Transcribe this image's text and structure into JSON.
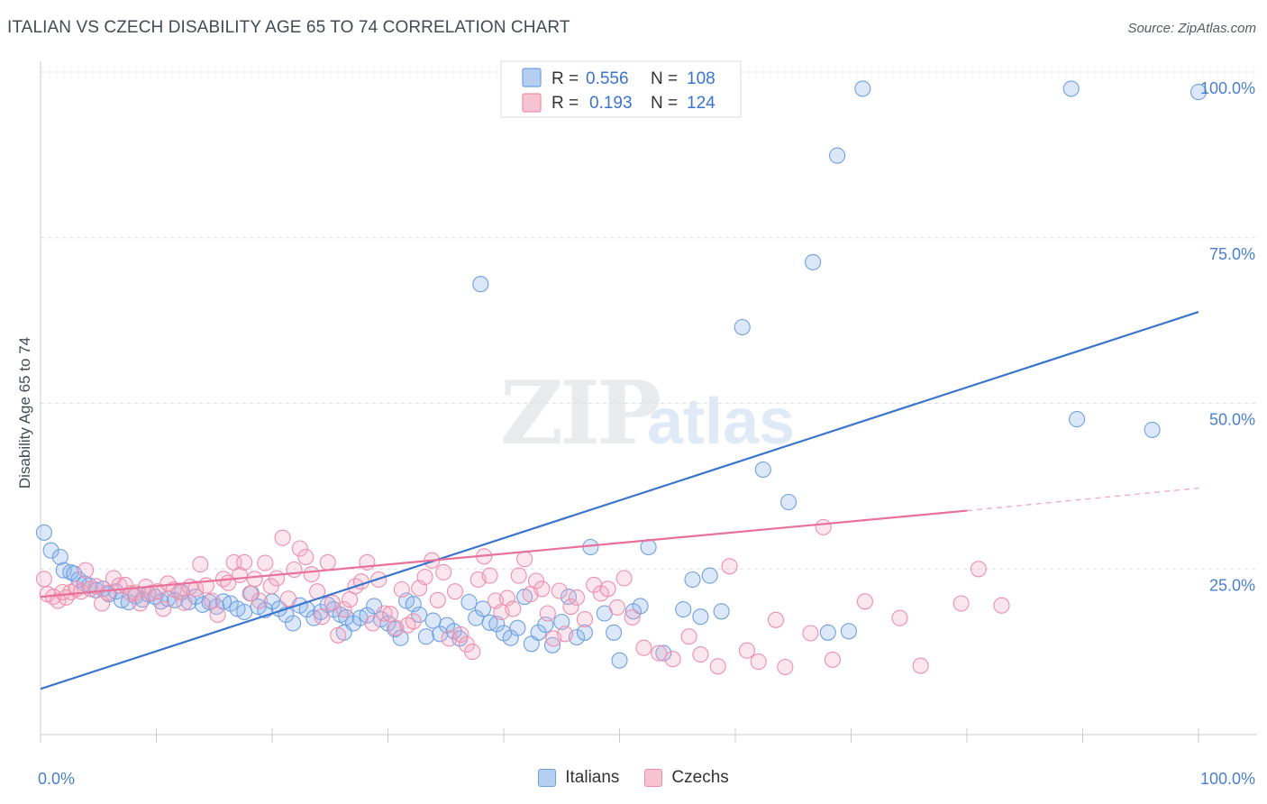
{
  "header": {
    "title": "ITALIAN VS CZECH DISABILITY AGE 65 TO 74 CORRELATION CHART",
    "source": "Source: ZipAtlas.com"
  },
  "watermark": {
    "zip": "ZIP",
    "atlas": "atlas"
  },
  "legend": {
    "r_label": "R =",
    "n_label": "N =",
    "rows": [
      {
        "r": "0.556",
        "n": "108",
        "color": "#6fa0e3"
      },
      {
        "r": "0.193",
        "n": "124",
        "color": "#ef8fad"
      }
    ]
  },
  "bottom_legend": [
    "Italians",
    "Czechs"
  ],
  "chart_data": {
    "type": "scatter",
    "title": "ITALIAN VS CZECH DISABILITY AGE 65 TO 74 CORRELATION CHART",
    "xlabel": "",
    "ylabel": "Disability Age 65 to 74",
    "xlim": [
      0,
      100
    ],
    "ylim": [
      0,
      100
    ],
    "x_tick_labels": [
      "0.0%",
      "100.0%"
    ],
    "y_tick_labels": [
      "25.0%",
      "50.0%",
      "75.0%",
      "100.0%"
    ],
    "y_ticks": [
      25,
      50,
      75,
      100
    ],
    "grid": true,
    "legend_position": "top-center",
    "series": [
      {
        "name": "Italians",
        "color": "#6fa0e3",
        "R": 0.556,
        "N": 108,
        "trend": {
          "x": [
            0,
            100
          ],
          "y": [
            6.9,
            63.8
          ],
          "dashed_from": null
        },
        "points": [
          [
            0.3,
            30.5
          ],
          [
            0.9,
            27.8
          ],
          [
            1.7,
            26.8
          ],
          [
            2.0,
            24.8
          ],
          [
            2.6,
            24.5
          ],
          [
            2.9,
            24.3
          ],
          [
            3.3,
            23.4
          ],
          [
            3.8,
            22.8
          ],
          [
            4.2,
            22.5
          ],
          [
            4.8,
            21.8
          ],
          [
            5.4,
            22.0
          ],
          [
            5.9,
            21.2
          ],
          [
            6.5,
            21.6
          ],
          [
            7.0,
            20.3
          ],
          [
            7.6,
            20.0
          ],
          [
            8.2,
            20.9
          ],
          [
            8.8,
            20.4
          ],
          [
            9.3,
            21.2
          ],
          [
            9.9,
            20.8
          ],
          [
            10.4,
            20.1
          ],
          [
            11.0,
            20.5
          ],
          [
            11.6,
            20.3
          ],
          [
            12.2,
            21.5
          ],
          [
            12.8,
            20.0
          ],
          [
            13.4,
            20.8
          ],
          [
            14.0,
            19.6
          ],
          [
            14.6,
            20.0
          ],
          [
            15.2,
            19.3
          ],
          [
            15.8,
            20.1
          ],
          [
            16.4,
            19.8
          ],
          [
            17.0,
            19.0
          ],
          [
            17.6,
            18.5
          ],
          [
            18.2,
            21.3
          ],
          [
            18.8,
            19.3
          ],
          [
            19.4,
            18.8
          ],
          [
            20.0,
            20.1
          ],
          [
            20.6,
            19.0
          ],
          [
            21.2,
            18.1
          ],
          [
            21.8,
            16.8
          ],
          [
            22.4,
            19.5
          ],
          [
            23.0,
            18.9
          ],
          [
            23.6,
            17.6
          ],
          [
            24.2,
            18.5
          ],
          [
            24.8,
            19.6
          ],
          [
            25.3,
            18.9
          ],
          [
            25.9,
            18.1
          ],
          [
            26.4,
            17.7
          ],
          [
            27.0,
            16.8
          ],
          [
            27.6,
            17.6
          ],
          [
            28.2,
            18.0
          ],
          [
            28.8,
            19.4
          ],
          [
            29.4,
            17.4
          ],
          [
            30.0,
            16.8
          ],
          [
            30.6,
            15.9
          ],
          [
            31.1,
            14.6
          ],
          [
            31.6,
            20.2
          ],
          [
            32.2,
            19.7
          ],
          [
            32.7,
            18.1
          ],
          [
            33.3,
            14.8
          ],
          [
            33.9,
            17.2
          ],
          [
            34.5,
            15.2
          ],
          [
            35.1,
            16.5
          ],
          [
            35.7,
            15.6
          ],
          [
            36.2,
            14.5
          ],
          [
            37.0,
            20.0
          ],
          [
            37.6,
            17.6
          ],
          [
            38.2,
            19.0
          ],
          [
            38.8,
            16.9
          ],
          [
            39.4,
            16.7
          ],
          [
            40.0,
            15.3
          ],
          [
            40.6,
            14.6
          ],
          [
            41.2,
            16.1
          ],
          [
            41.8,
            20.8
          ],
          [
            42.4,
            13.7
          ],
          [
            43.0,
            15.4
          ],
          [
            43.6,
            16.6
          ],
          [
            44.2,
            13.5
          ],
          [
            45.0,
            17.0
          ],
          [
            45.6,
            20.8
          ],
          [
            46.3,
            14.7
          ],
          [
            47.0,
            15.4
          ],
          [
            47.5,
            28.3
          ],
          [
            48.7,
            18.3
          ],
          [
            49.5,
            15.4
          ],
          [
            50.0,
            11.2
          ],
          [
            51.2,
            18.6
          ],
          [
            51.8,
            19.4
          ],
          [
            52.5,
            28.3
          ],
          [
            53.8,
            12.3
          ],
          [
            55.5,
            18.9
          ],
          [
            56.3,
            23.4
          ],
          [
            57.0,
            17.8
          ],
          [
            57.8,
            24.0
          ],
          [
            58.8,
            18.6
          ],
          [
            60.6,
            61.5
          ],
          [
            62.4,
            40.0
          ],
          [
            64.6,
            35.1
          ],
          [
            66.7,
            71.3
          ],
          [
            68.0,
            15.4
          ],
          [
            68.8,
            87.4
          ],
          [
            69.8,
            15.6
          ],
          [
            71.0,
            97.5
          ],
          [
            89.5,
            47.6
          ],
          [
            100,
            97.0
          ],
          [
            96.0,
            46.0
          ],
          [
            89.0,
            97.5
          ],
          [
            38.0,
            68.0
          ],
          [
            26.2,
            15.4
          ]
        ]
      },
      {
        "name": "Czechs",
        "color": "#ef8fad",
        "R": 0.193,
        "N": 124,
        "trend": {
          "x": [
            0,
            80,
            100
          ],
          "y": [
            20.8,
            33.8,
            37.2
          ],
          "dashed_from": 80
        },
        "points": [
          [
            0.3,
            23.5
          ],
          [
            0.6,
            21.2
          ],
          [
            1.1,
            20.8
          ],
          [
            1.5,
            20.2
          ],
          [
            1.9,
            21.5
          ],
          [
            2.2,
            20.7
          ],
          [
            2.6,
            21.5
          ],
          [
            3.1,
            22.0
          ],
          [
            3.5,
            21.6
          ],
          [
            3.9,
            24.8
          ],
          [
            4.3,
            22.0
          ],
          [
            4.8,
            22.4
          ],
          [
            5.3,
            19.8
          ],
          [
            5.8,
            21.4
          ],
          [
            6.3,
            23.6
          ],
          [
            6.8,
            22.5
          ],
          [
            7.3,
            22.6
          ],
          [
            7.8,
            21.3
          ],
          [
            8.2,
            21.4
          ],
          [
            8.6,
            19.8
          ],
          [
            9.1,
            22.3
          ],
          [
            9.6,
            21.4
          ],
          [
            10.1,
            21.6
          ],
          [
            10.6,
            19.0
          ],
          [
            11.0,
            22.8
          ],
          [
            11.5,
            21.9
          ],
          [
            12.0,
            21.5
          ],
          [
            12.4,
            19.9
          ],
          [
            12.9,
            22.3
          ],
          [
            13.4,
            22.0
          ],
          [
            13.8,
            25.7
          ],
          [
            14.3,
            22.5
          ],
          [
            14.8,
            20.2
          ],
          [
            15.3,
            18.1
          ],
          [
            15.8,
            23.5
          ],
          [
            16.2,
            22.9
          ],
          [
            16.7,
            26.0
          ],
          [
            17.2,
            24.1
          ],
          [
            17.6,
            26.0
          ],
          [
            18.1,
            21.3
          ],
          [
            18.5,
            23.5
          ],
          [
            18.9,
            20.2
          ],
          [
            19.4,
            25.9
          ],
          [
            19.9,
            22.4
          ],
          [
            20.4,
            23.6
          ],
          [
            20.9,
            29.7
          ],
          [
            21.4,
            20.5
          ],
          [
            21.9,
            24.9
          ],
          [
            22.4,
            28.1
          ],
          [
            22.9,
            26.8
          ],
          [
            23.4,
            24.2
          ],
          [
            23.9,
            21.6
          ],
          [
            24.3,
            17.8
          ],
          [
            24.8,
            26.0
          ],
          [
            25.2,
            19.9
          ],
          [
            25.7,
            15.0
          ],
          [
            26.2,
            18.9
          ],
          [
            26.7,
            20.4
          ],
          [
            27.2,
            22.4
          ],
          [
            27.7,
            23.1
          ],
          [
            28.2,
            26.0
          ],
          [
            28.7,
            16.8
          ],
          [
            29.2,
            23.4
          ],
          [
            29.7,
            18.3
          ],
          [
            30.2,
            18.2
          ],
          [
            30.7,
            16.1
          ],
          [
            31.2,
            21.9
          ],
          [
            31.7,
            16.5
          ],
          [
            32.2,
            17.1
          ],
          [
            32.7,
            22.1
          ],
          [
            33.2,
            23.8
          ],
          [
            33.8,
            26.3
          ],
          [
            34.3,
            20.3
          ],
          [
            34.8,
            24.5
          ],
          [
            35.3,
            14.5
          ],
          [
            35.8,
            21.6
          ],
          [
            36.3,
            15.1
          ],
          [
            36.8,
            13.6
          ],
          [
            37.3,
            12.5
          ],
          [
            37.8,
            23.4
          ],
          [
            38.3,
            26.9
          ],
          [
            38.8,
            24.0
          ],
          [
            39.3,
            20.2
          ],
          [
            39.8,
            18.5
          ],
          [
            40.3,
            20.6
          ],
          [
            40.8,
            19.0
          ],
          [
            41.3,
            24.0
          ],
          [
            41.8,
            26.5
          ],
          [
            42.3,
            21.2
          ],
          [
            42.8,
            23.2
          ],
          [
            43.3,
            22.0
          ],
          [
            43.8,
            18.3
          ],
          [
            44.3,
            14.5
          ],
          [
            44.8,
            21.7
          ],
          [
            45.3,
            15.2
          ],
          [
            45.8,
            19.3
          ],
          [
            46.3,
            20.7
          ],
          [
            47.0,
            17.4
          ],
          [
            47.8,
            22.6
          ],
          [
            48.4,
            21.3
          ],
          [
            49.0,
            22.0
          ],
          [
            49.8,
            19.2
          ],
          [
            50.4,
            23.6
          ],
          [
            51.1,
            17.7
          ],
          [
            52.1,
            13.1
          ],
          [
            53.4,
            12.3
          ],
          [
            54.6,
            11.4
          ],
          [
            56.0,
            14.8
          ],
          [
            57.0,
            12.1
          ],
          [
            58.5,
            10.3
          ],
          [
            59.5,
            25.4
          ],
          [
            61.0,
            12.7
          ],
          [
            62.0,
            11.0
          ],
          [
            63.5,
            17.3
          ],
          [
            64.3,
            10.2
          ],
          [
            66.5,
            15.3
          ],
          [
            67.6,
            31.3
          ],
          [
            68.4,
            11.3
          ],
          [
            71.2,
            20.1
          ],
          [
            74.2,
            17.6
          ],
          [
            76.0,
            10.4
          ],
          [
            79.5,
            19.8
          ],
          [
            81.0,
            25.0
          ],
          [
            83.0,
            19.5
          ]
        ]
      }
    ]
  }
}
